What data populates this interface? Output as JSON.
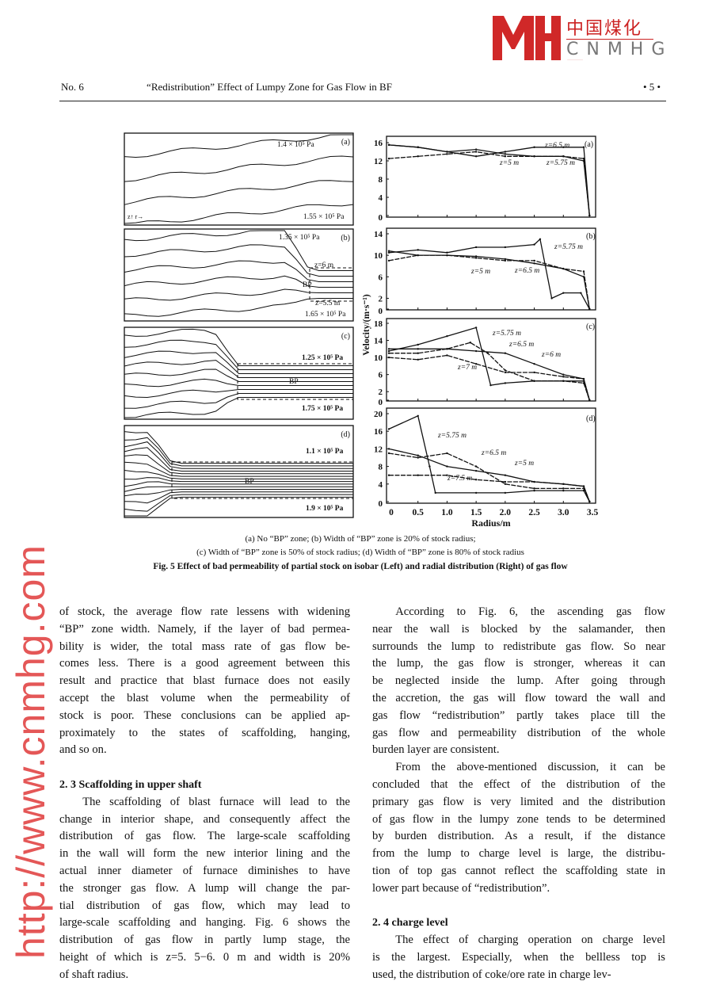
{
  "header": {
    "issue": "No. 6",
    "title": "“Redistribution” Effect of Lumpy Zone for Gas Flow in BF",
    "page": "• 5 •"
  },
  "figure": {
    "left_panels": [
      {
        "tag": "(a)",
        "labels": [
          "1.4 × 10⁵ Pa",
          "1.55 × 10⁵ Pa"
        ],
        "axes": "z↑ r→"
      },
      {
        "tag": "(b)",
        "labels": [
          "1.35 × 10⁵ Pa",
          "z=6 m",
          "BP",
          "z=5.5 m",
          "1.65 × 10⁵ Pa"
        ]
      },
      {
        "tag": "(c)",
        "labels": [
          "1.25 × 10⁵ Pa",
          "BP",
          "1.75 × 10⁵ Pa"
        ]
      },
      {
        "tag": "(d)",
        "labels": [
          "1.1 × 10⁵ Pa",
          "BP",
          "1.9 × 10⁵ Pa"
        ]
      }
    ],
    "caption_lines": [
      "(a) No “BP” zone;      (b) Width of “BP” zone is 20% of stock radius;",
      "(c) Width of “BP” zone is 50% of stock radius;      (d) Width of “BP” zone is 80% of stock radius"
    ],
    "caption_title": "Fig. 5   Effect of bad permeability of partial stock on isobar (Left) and radial distribution (Right) of gas flow"
  },
  "chart_data": [
    {
      "type": "line",
      "panel": "(a)",
      "xlabel": "Radius/m",
      "ylabel": "Velocity/(m·s⁻¹)",
      "xlim": [
        0,
        3.5
      ],
      "ylim": [
        0,
        16
      ],
      "xticks": [
        "0",
        "0.5",
        "1.0",
        "1.5",
        "2.0",
        "2.5",
        "3.0",
        "3.5"
      ],
      "yticks": [
        "0",
        "4",
        "8",
        "12",
        "16"
      ],
      "series": [
        {
          "name": "z=6.5 m",
          "points": [
            [
              0,
              15.5
            ],
            [
              0.5,
              15
            ],
            [
              1,
              14
            ],
            [
              1.5,
              13
            ],
            [
              2,
              14
            ],
            [
              2.5,
              15
            ],
            [
              3,
              15
            ],
            [
              3.35,
              15
            ],
            [
              3.45,
              0
            ]
          ]
        },
        {
          "name": "z=5 m",
          "points": [
            [
              0,
              12.5
            ],
            [
              0.5,
              13
            ],
            [
              1,
              13.5
            ],
            [
              1.5,
              14
            ],
            [
              2,
              13
            ],
            [
              2.5,
              13
            ],
            [
              3,
              13
            ],
            [
              3.35,
              12.5
            ],
            [
              3.45,
              0
            ]
          ]
        },
        {
          "name": "z=5.75 m",
          "points": [
            [
              0,
              15.5
            ],
            [
              0.5,
              15
            ],
            [
              1,
              14
            ],
            [
              1.5,
              14.5
            ],
            [
              2,
              13.5
            ],
            [
              2.5,
              13
            ],
            [
              3,
              13
            ],
            [
              3.35,
              12
            ],
            [
              3.45,
              0
            ]
          ]
        }
      ]
    },
    {
      "type": "line",
      "panel": "(b)",
      "xlim": [
        0,
        3.5
      ],
      "ylim": [
        0,
        14
      ],
      "yticks": [
        "0",
        "2",
        "6",
        "10",
        "14"
      ],
      "series": [
        {
          "name": "z=5.75 m",
          "points": [
            [
              0,
              10.5
            ],
            [
              0.5,
              11
            ],
            [
              1,
              10.5
            ],
            [
              1.5,
              11.5
            ],
            [
              2,
              11.5
            ],
            [
              2.5,
              12
            ],
            [
              2.6,
              13
            ],
            [
              2.8,
              2
            ],
            [
              3,
              3
            ],
            [
              3.3,
              3
            ],
            [
              3.45,
              0
            ]
          ]
        },
        {
          "name": "z=5 m",
          "points": [
            [
              0,
              9
            ],
            [
              0.5,
              10
            ],
            [
              1,
              10
            ],
            [
              1.5,
              9.5
            ],
            [
              2,
              9
            ],
            [
              2.5,
              9
            ],
            [
              3,
              7.5
            ],
            [
              3.35,
              7
            ],
            [
              3.45,
              0
            ]
          ]
        },
        {
          "name": "z=6.5 m",
          "points": [
            [
              0,
              10.8
            ],
            [
              0.5,
              10
            ],
            [
              1,
              10
            ],
            [
              1.5,
              9.8
            ],
            [
              2,
              9.3
            ],
            [
              2.5,
              8.5
            ],
            [
              3,
              7.5
            ],
            [
              3.35,
              6
            ],
            [
              3.45,
              0
            ]
          ]
        }
      ]
    },
    {
      "type": "line",
      "panel": "(c)",
      "xlim": [
        0,
        3.5
      ],
      "ylim": [
        0,
        18
      ],
      "yticks": [
        "0",
        "2",
        "6",
        "10",
        "14",
        "18"
      ],
      "series": [
        {
          "name": "z=5.75 m",
          "points": [
            [
              0,
              11.5
            ],
            [
              0.5,
              13
            ],
            [
              1,
              15
            ],
            [
              1.5,
              17
            ],
            [
              1.75,
              3.5
            ],
            [
              2,
              4
            ],
            [
              2.5,
              4.5
            ],
            [
              3,
              4.5
            ],
            [
              3.35,
              4.5
            ],
            [
              3.45,
              0
            ]
          ]
        },
        {
          "name": "z=6.5 m",
          "points": [
            [
              0,
              11
            ],
            [
              0.5,
              11
            ],
            [
              1,
              12
            ],
            [
              1.4,
              13.5
            ],
            [
              1.7,
              11
            ],
            [
              2,
              7
            ],
            [
              2.5,
              4.5
            ],
            [
              3,
              4.5
            ],
            [
              3.35,
              4
            ],
            [
              3.45,
              0
            ]
          ]
        },
        {
          "name": "z=6 m",
          "points": [
            [
              0,
              12
            ],
            [
              0.5,
              12
            ],
            [
              1,
              12
            ],
            [
              1.5,
              11.5
            ],
            [
              2,
              11
            ],
            [
              2.5,
              8.5
            ],
            [
              3,
              6
            ],
            [
              3.35,
              5
            ],
            [
              3.45,
              0
            ]
          ]
        },
        {
          "name": "z=7 m",
          "points": [
            [
              0,
              10
            ],
            [
              0.5,
              9.5
            ],
            [
              1,
              10.5
            ],
            [
              1.5,
              8.5
            ],
            [
              2,
              6.5
            ],
            [
              2.5,
              6.5
            ],
            [
              3,
              5.5
            ],
            [
              3.35,
              5
            ],
            [
              3.45,
              0
            ]
          ]
        }
      ]
    },
    {
      "type": "line",
      "panel": "(d)",
      "xlim": [
        0,
        3.5
      ],
      "ylim": [
        0,
        20
      ],
      "yticks": [
        "0",
        "4",
        "8",
        "12",
        "16",
        "20"
      ],
      "series": [
        {
          "name": "z=5.75 m",
          "points": [
            [
              0,
              16.5
            ],
            [
              0.5,
              19.5
            ],
            [
              0.7,
              8
            ],
            [
              0.8,
              2
            ],
            [
              1.5,
              2
            ],
            [
              2,
              2
            ],
            [
              2.5,
              2.5
            ],
            [
              3,
              2.5
            ],
            [
              3.35,
              2.5
            ],
            [
              3.45,
              0
            ]
          ]
        },
        {
          "name": "z=6.5 m",
          "points": [
            [
              0,
              11
            ],
            [
              0.5,
              10
            ],
            [
              1,
              11
            ],
            [
              1.5,
              8
            ],
            [
              2,
              4
            ],
            [
              2.5,
              3
            ],
            [
              3,
              3
            ],
            [
              3.35,
              3
            ],
            [
              3.45,
              0
            ]
          ]
        },
        {
          "name": "z=5 m",
          "points": [
            [
              0,
              12
            ],
            [
              0.5,
              10.5
            ],
            [
              1,
              8
            ],
            [
              1.5,
              7
            ],
            [
              2,
              6
            ],
            [
              2.5,
              4.5
            ],
            [
              3,
              4
            ],
            [
              3.35,
              3.5
            ],
            [
              3.45,
              0
            ]
          ]
        },
        {
          "name": "z=7.5 m",
          "points": [
            [
              0,
              6
            ],
            [
              0.5,
              6
            ],
            [
              1,
              6
            ],
            [
              1.5,
              5
            ],
            [
              2,
              4.5
            ],
            [
              2.5,
              4.5
            ],
            [
              3,
              4
            ],
            [
              3.35,
              3.5
            ],
            [
              3.45,
              0
            ]
          ]
        }
      ]
    }
  ],
  "body": {
    "left": [
      {
        "type": "p",
        "lines": [
          "of stock, the average flow rate lessens with widening",
          "“BP” zone width. Namely, if the layer of bad permea-",
          "bility is wider, the total mass rate of gas flow be-",
          "comes less. There is a good agreement between this",
          "result and practice that blast furnace does not easily",
          "accept the blast volume when the permeability of",
          "stock is poor. These conclusions can be applied ap-",
          "proximately to the states of scaffolding, hanging,",
          "and so on."
        ]
      },
      {
        "type": "blank"
      },
      {
        "type": "h",
        "lines": [
          "2. 3  Scaffolding in upper shaft"
        ]
      },
      {
        "type": "p",
        "indent": true,
        "lines": [
          "The scaffolding of blast furnace will lead to the",
          "change in interior shape, and consequently affect the",
          "distribution of gas flow. The large-scale scaffolding",
          "in the wall will form the new interior lining and the",
          "actual inner diameter of furnace diminishes to have",
          "the stronger gas flow. A lump will change the par-",
          "tial distribution of gas flow, which may lead to",
          "large-scale scaffolding and hanging. Fig. 6 shows the",
          "distribution of gas flow in partly lump stage, the",
          "height of which is z=5. 5−6. 0 m and width is 20%",
          "of shaft radius."
        ]
      }
    ],
    "right": [
      {
        "type": "p",
        "indent": true,
        "lines": [
          "According to Fig. 6, the ascending gas flow",
          "near the wall is blocked by the salamander, then",
          "surrounds the lump to redistribute gas flow. So near",
          "the lump, the gas flow is stronger, whereas it can",
          "be neglected inside the lump. After going through",
          "the accretion, the gas will flow toward the wall and",
          "gas flow “redistribution” partly takes place till the",
          "gas flow and permeability distribution of the whole",
          "burden layer are consistent."
        ]
      },
      {
        "type": "p",
        "indent": true,
        "lines": [
          "From the above-mentioned discussion, it can be",
          "concluded that the effect of the distribution of the",
          "primary gas flow is very limited and the distribution",
          "of gas flow in the lumpy zone tends to be determined",
          "by burden distribution. As a result, if the distance",
          "from the lump to charge level is large, the distribu-",
          "tion of top gas cannot reflect the scaffolding state in",
          "lower part because of “redistribution”."
        ]
      },
      {
        "type": "blank"
      },
      {
        "type": "h",
        "lines": [
          "2. 4                                                charge level"
        ]
      },
      {
        "type": "p",
        "indent": true,
        "lines": [
          "The effect of charging operation on charge level",
          "is the largest. Especially, when the bellless top is",
          "used, the distribution of coke/ore rate in charge lev-"
        ]
      }
    ]
  },
  "watermark": {
    "url": "http://www.cnmhg.com",
    "logo_cn": "中国煤化工",
    "logo_en": "CNMHG",
    "color": "#d02828"
  }
}
